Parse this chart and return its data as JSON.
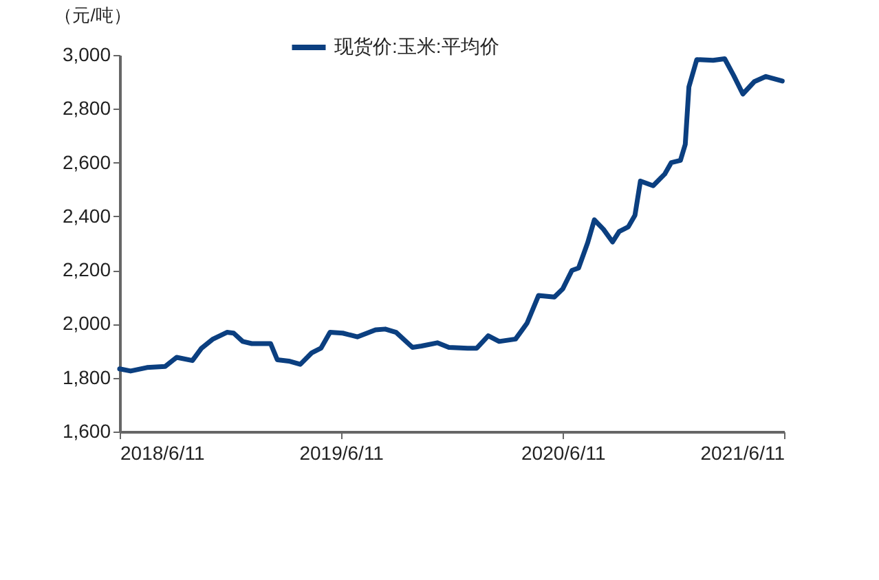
{
  "chart_data": {
    "type": "line",
    "ylabel": "（元/吨）",
    "legend": "top",
    "x": [
      "2018-06-11",
      "2018-06-29",
      "2018-07-26",
      "2018-08-25",
      "2018-09-13",
      "2018-10-09",
      "2018-10-24",
      "2018-11-12",
      "2018-12-05",
      "2018-12-16",
      "2018-12-31",
      "2019-01-15",
      "2019-02-15",
      "2019-02-26",
      "2019-03-17",
      "2019-04-05",
      "2019-04-24",
      "2019-05-09",
      "2019-05-24",
      "2019-06-14",
      "2019-07-08",
      "2019-08-07",
      "2019-08-23",
      "2019-09-10",
      "2019-10-07",
      "2019-10-22",
      "2019-11-17",
      "2019-12-06",
      "2020-01-06",
      "2020-01-21",
      "2020-02-09",
      "2020-02-27",
      "2020-03-25",
      "2020-04-13",
      "2020-05-02",
      "2020-05-28",
      "2020-06-11",
      "2020-06-26",
      "2020-07-07",
      "2020-07-22",
      "2020-08-02",
      "2020-08-17",
      "2020-09-01",
      "2020-09-12",
      "2020-09-27",
      "2020-10-08",
      "2020-10-17",
      "2020-11-07",
      "2020-11-26",
      "2020-12-07",
      "2020-12-22",
      "2020-12-30",
      "2021-01-05",
      "2021-01-18",
      "2021-02-14",
      "2021-03-05",
      "2021-03-20",
      "2021-04-04",
      "2021-04-23",
      "2021-05-12",
      "2021-06-08"
    ],
    "series": [
      {
        "name": "现货价:玉米:平均价",
        "color": "#0b3f80",
        "values": [
          1833,
          1825,
          1838,
          1842,
          1876,
          1864,
          1910,
          1944,
          1969,
          1966,
          1935,
          1927,
          1927,
          1867,
          1862,
          1850,
          1893,
          1910,
          1969,
          1966,
          1952,
          1978,
          1981,
          1969,
          1913,
          1918,
          1930,
          1913,
          1910,
          1910,
          1956,
          1935,
          1944,
          2003,
          2106,
          2100,
          2131,
          2199,
          2208,
          2302,
          2387,
          2352,
          2305,
          2344,
          2361,
          2404,
          2531,
          2514,
          2557,
          2600,
          2608,
          2668,
          2881,
          2983,
          2980,
          2986,
          2923,
          2855,
          2901,
          2920,
          2903
        ]
      }
    ],
    "xlim": [
      "2018-06-11",
      "2021-06-11"
    ],
    "xticks": [
      {
        "value": "2018-06-11",
        "label": "2018/6/11"
      },
      {
        "value": "2019-06-11",
        "label": "2019/6/11"
      },
      {
        "value": "2020-06-11",
        "label": "2020/6/11"
      },
      {
        "value": "2021-06-11",
        "label": "2021/6/11"
      }
    ],
    "ylim": [
      1600,
      3000
    ],
    "yticks": [
      {
        "value": 1600,
        "label": "1,600"
      },
      {
        "value": 1800,
        "label": "1,800"
      },
      {
        "value": 2000,
        "label": "2,000"
      },
      {
        "value": 2200,
        "label": "2,200"
      },
      {
        "value": 2400,
        "label": "2,400"
      },
      {
        "value": 2600,
        "label": "2,600"
      },
      {
        "value": 2800,
        "label": "2,800"
      },
      {
        "value": 3000,
        "label": "3,000"
      }
    ],
    "grid": false
  }
}
